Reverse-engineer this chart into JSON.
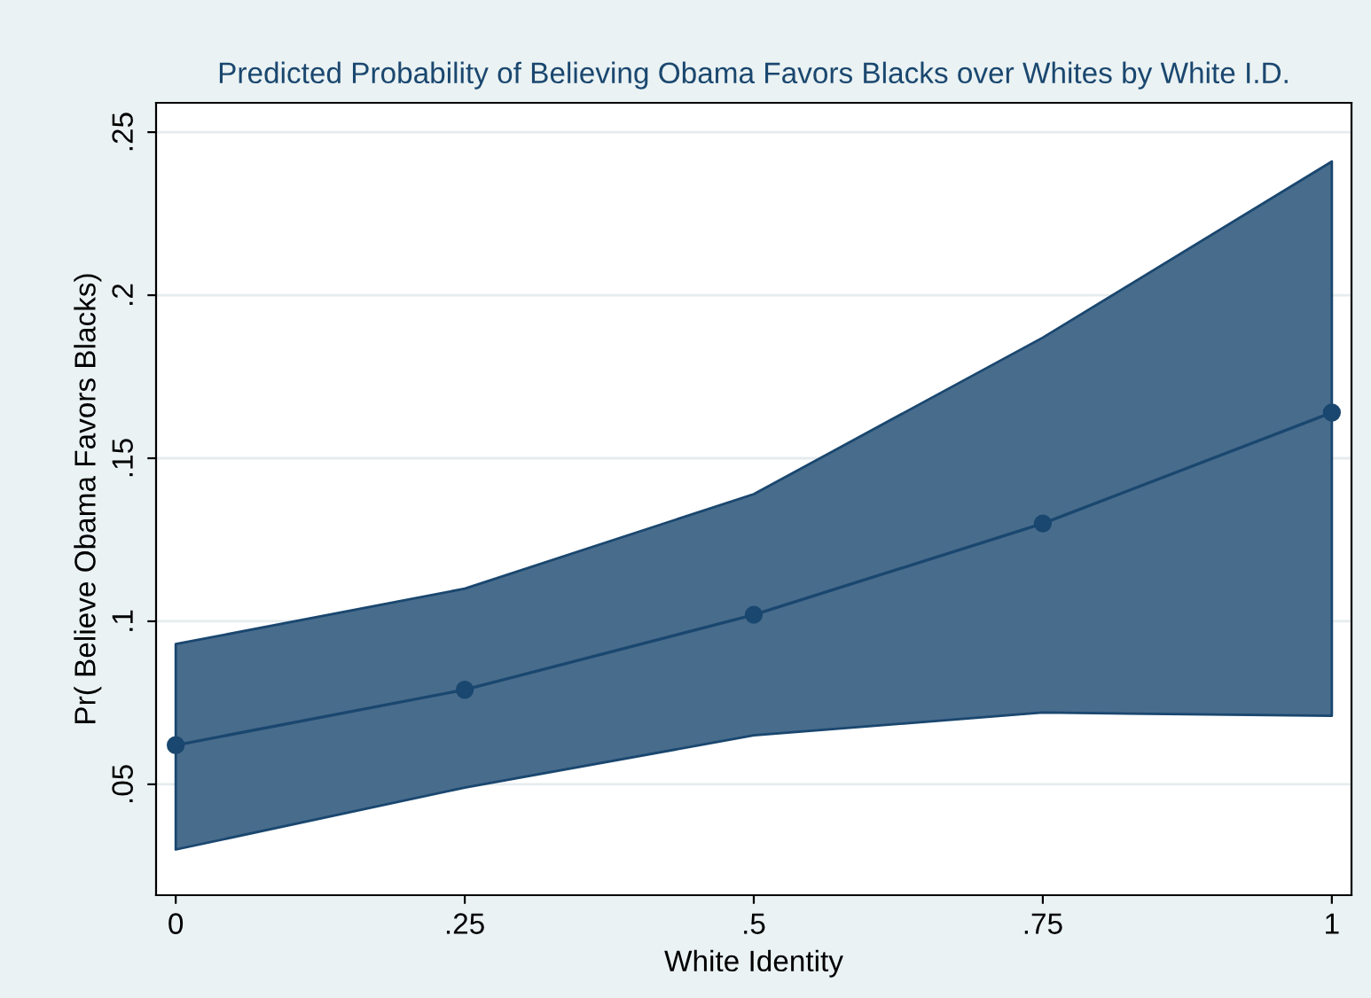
{
  "chart_data": {
    "type": "line",
    "title": "Predicted Probability of Believing Obama Favors Blacks over Whites by White I.D.",
    "xlabel": "White Identity",
    "ylabel": "Pr( Believe Obama Favors Blacks)",
    "x": [
      0,
      0.25,
      0.5,
      0.75,
      1
    ],
    "series": [
      {
        "color": "#1a476f",
        "values": [
          0.062,
          0.079,
          0.102,
          0.13,
          0.164
        ],
        "lower": [
          0.03,
          0.049,
          0.065,
          0.072,
          0.071
        ],
        "upper": [
          0.093,
          0.11,
          0.139,
          0.187,
          0.241
        ]
      }
    ],
    "xlim": [
      -0.017,
      1.017
    ],
    "ylim": [
      0.016,
      0.259
    ],
    "xticks": [
      0,
      {
        "value": 0.25,
        "label": ".25"
      },
      {
        "value": 0.5,
        "label": ".5"
      },
      {
        "value": 0.75,
        "label": ".75"
      },
      1
    ],
    "yticks": [
      {
        "value": 0.05,
        "label": ".05"
      },
      {
        "value": 0.1,
        "label": ".1"
      },
      {
        "value": 0.15,
        "label": ".15"
      },
      {
        "value": 0.2,
        "label": ".2"
      },
      {
        "value": 0.25,
        "label": ".25"
      }
    ],
    "grid": "y",
    "marker": "circle",
    "line_style": "solid"
  }
}
